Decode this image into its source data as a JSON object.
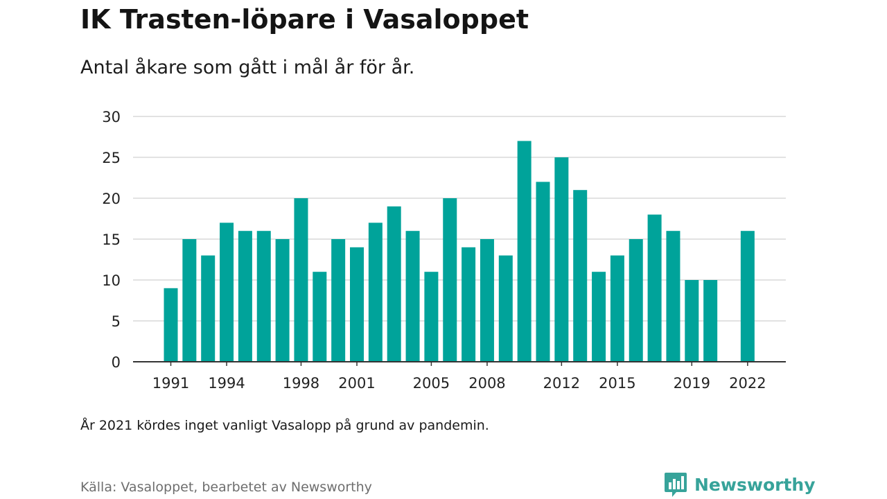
{
  "title": "IK Trasten-löpare i Vasaloppet",
  "subtitle": "Antal åkare som gått i mål år för år.",
  "note": "År 2021 kördes inget vanligt Vasalopp på grund av pandemin.",
  "source": "Källa: Vasaloppet, bearbetet av Newsworthy",
  "brand": "Newsworthy",
  "colors": {
    "bar": "#00a39a",
    "grid": "#d9d9d9",
    "axis": "#333333",
    "tick_text": "#222222",
    "brand": "#37a39a"
  },
  "chart_data": {
    "type": "bar",
    "categories": [
      1991,
      1992,
      1993,
      1994,
      1995,
      1996,
      1997,
      1998,
      1999,
      2000,
      2001,
      2002,
      2003,
      2004,
      2005,
      2006,
      2007,
      2008,
      2009,
      2010,
      2011,
      2012,
      2013,
      2014,
      2015,
      2016,
      2017,
      2018,
      2019,
      2020,
      2021,
      2022
    ],
    "values": [
      9,
      15,
      13,
      17,
      16,
      16,
      15,
      20,
      11,
      15,
      14,
      17,
      19,
      16,
      11,
      20,
      14,
      15,
      13,
      27,
      22,
      25,
      21,
      11,
      13,
      15,
      18,
      16,
      10,
      10,
      null,
      16
    ],
    "x_tick_labels": [
      1991,
      1994,
      1998,
      2001,
      2005,
      2008,
      2012,
      2015,
      2019,
      2022
    ],
    "y_ticks": [
      0,
      5,
      10,
      15,
      20,
      25,
      30
    ],
    "ylim": [
      0,
      30
    ],
    "xlabel": "",
    "ylabel": "",
    "grid": true,
    "legend": "none"
  }
}
